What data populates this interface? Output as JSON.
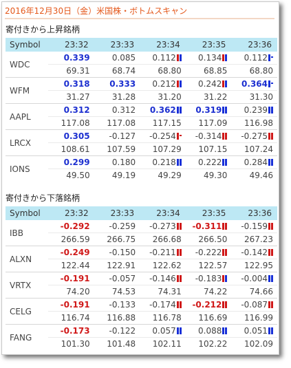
{
  "title": "2016年12月30日（金）米国株・ボトムスキャン",
  "sections": [
    {
      "heading": "寄付きから上昇銘柄",
      "header": [
        "Symbol",
        "23:32",
        "23:33",
        "23:34",
        "23:35",
        "23:36"
      ],
      "rows": [
        {
          "symbol": "WDC",
          "changes": [
            {
              "v": "0.339",
              "s": "pos"
            },
            {
              "v": "0.085",
              "s": ""
            },
            {
              "v": "0.112",
              "s": "",
              "ind": "rb"
            },
            {
              "v": "0.134",
              "s": "",
              "ind": "rb"
            },
            {
              "v": "0.112",
              "s": "",
              "ind": "b1"
            }
          ],
          "prices": [
            "69.31",
            "68.74",
            "68.80",
            "68.85",
            "68.80"
          ]
        },
        {
          "symbol": "WFM",
          "changes": [
            {
              "v": "0.318",
              "s": "pos"
            },
            {
              "v": "0.333",
              "s": "pos"
            },
            {
              "v": "0.212",
              "s": "",
              "ind": "rb"
            },
            {
              "v": "0.242",
              "s": "",
              "ind": "rb"
            },
            {
              "v": "0.364",
              "s": "pos",
              "ind": "b1"
            }
          ],
          "prices": [
            "31.27",
            "31.28",
            "31.20",
            "31.22",
            "31.30"
          ]
        },
        {
          "symbol": "AAPL",
          "changes": [
            {
              "v": "0.312",
              "s": "pos"
            },
            {
              "v": "0.312",
              "s": ""
            },
            {
              "v": "0.362",
              "s": "pos",
              "ind": "bb"
            },
            {
              "v": "0.319",
              "s": "pos",
              "ind": "bb"
            },
            {
              "v": "0.239",
              "s": "",
              "ind": "bb"
            }
          ],
          "prices": [
            "117.08",
            "117.08",
            "117.15",
            "117.09",
            "116.98"
          ]
        },
        {
          "symbol": "LRCX",
          "changes": [
            {
              "v": "0.305",
              "s": "pos"
            },
            {
              "v": "-0.127",
              "s": ""
            },
            {
              "v": "-0.254",
              "s": "",
              "ind": "r1"
            },
            {
              "v": "-0.314",
              "s": "",
              "ind": "rr"
            },
            {
              "v": "-0.275",
              "s": "",
              "ind": "rr"
            }
          ],
          "prices": [
            "108.61",
            "107.59",
            "107.29",
            "107.15",
            "107.24"
          ]
        },
        {
          "symbol": "IONS",
          "changes": [
            {
              "v": "0.299",
              "s": "pos"
            },
            {
              "v": "0.180",
              "s": ""
            },
            {
              "v": "0.218",
              "s": "",
              "ind": "bb"
            },
            {
              "v": "0.222",
              "s": "",
              "ind": "bb"
            },
            {
              "v": "0.284",
              "s": "",
              "ind": "bb"
            }
          ],
          "prices": [
            "49.50",
            "49.19",
            "49.29",
            "49.30",
            "49.46"
          ]
        }
      ]
    },
    {
      "heading": "寄付きから下落銘柄",
      "header": [
        "Symbol",
        "23:32",
        "23:33",
        "23:34",
        "23:35",
        "23:36"
      ],
      "rows": [
        {
          "symbol": "IBB",
          "changes": [
            {
              "v": "-0.292",
              "s": "neg"
            },
            {
              "v": "-0.259",
              "s": ""
            },
            {
              "v": "-0.273",
              "s": "",
              "ind": "rr"
            },
            {
              "v": "-0.311",
              "s": "neg",
              "ind": "rr"
            },
            {
              "v": "-0.159",
              "s": "",
              "ind": "rr"
            }
          ],
          "prices": [
            "266.59",
            "266.75",
            "266.68",
            "266.50",
            "267.23"
          ]
        },
        {
          "symbol": "ALXN",
          "changes": [
            {
              "v": "-0.249",
              "s": "neg"
            },
            {
              "v": "-0.150",
              "s": ""
            },
            {
              "v": "-0.211",
              "s": "",
              "ind": "rr"
            },
            {
              "v": "-0.222",
              "s": "",
              "ind": "rr"
            },
            {
              "v": "-0.142",
              "s": "",
              "ind": "rr"
            }
          ],
          "prices": [
            "122.44",
            "122.91",
            "122.62",
            "122.57",
            "122.95"
          ]
        },
        {
          "symbol": "VRTX",
          "changes": [
            {
              "v": "-0.191",
              "s": "neg"
            },
            {
              "v": "-0.057",
              "s": ""
            },
            {
              "v": "-0.146",
              "s": "",
              "ind": "rr"
            },
            {
              "v": "-0.183",
              "s": "",
              "ind": "rb"
            },
            {
              "v": "-0.004",
              "s": "",
              "ind": "bb"
            }
          ],
          "prices": [
            "74.20",
            "74.53",
            "74.31",
            "74.22",
            "74.66"
          ]
        },
        {
          "symbol": "CELG",
          "changes": [
            {
              "v": "-0.191",
              "s": "neg"
            },
            {
              "v": "-0.133",
              "s": ""
            },
            {
              "v": "-0.174",
              "s": "",
              "ind": "rr"
            },
            {
              "v": "-0.212",
              "s": "neg",
              "ind": "rr"
            },
            {
              "v": "-0.087",
              "s": "",
              "ind": "rr"
            }
          ],
          "prices": [
            "116.74",
            "116.88",
            "116.78",
            "116.69",
            "116.99"
          ]
        },
        {
          "symbol": "FANG",
          "changes": [
            {
              "v": "-0.173",
              "s": "neg"
            },
            {
              "v": "-0.122",
              "s": ""
            },
            {
              "v": "0.057",
              "s": "",
              "ind": "bb"
            },
            {
              "v": "0.088",
              "s": "",
              "ind": "bb"
            },
            {
              "v": "0.051",
              "s": "",
              "ind": "bb"
            }
          ],
          "prices": [
            "101.30",
            "101.48",
            "102.11",
            "102.22",
            "102.09"
          ]
        }
      ]
    }
  ]
}
